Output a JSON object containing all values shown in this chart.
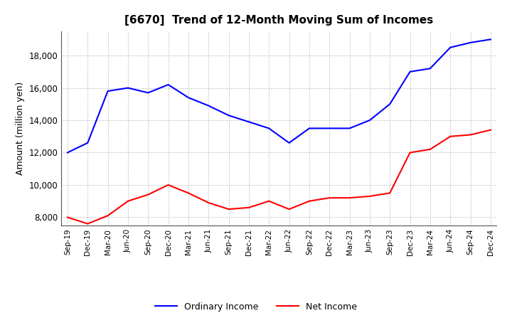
{
  "title": "[6670]  Trend of 12-Month Moving Sum of Incomes",
  "ylabel": "Amount (million yen)",
  "x_labels": [
    "Sep-19",
    "Dec-19",
    "Mar-20",
    "Jun-20",
    "Sep-20",
    "Dec-20",
    "Mar-21",
    "Jun-21",
    "Sep-21",
    "Dec-21",
    "Mar-22",
    "Jun-22",
    "Sep-22",
    "Dec-22",
    "Mar-23",
    "Jun-23",
    "Sep-23",
    "Dec-23",
    "Mar-24",
    "Jun-24",
    "Sep-24",
    "Dec-24"
  ],
  "ordinary_income": [
    12000,
    12600,
    15800,
    16000,
    15700,
    16200,
    15400,
    14900,
    14300,
    13900,
    13500,
    12600,
    13500,
    13500,
    13500,
    14000,
    15000,
    17000,
    17200,
    18500,
    18800,
    19000
  ],
  "net_income": [
    8000,
    7600,
    8100,
    9000,
    9400,
    10000,
    9500,
    8900,
    8500,
    8600,
    9000,
    8500,
    9000,
    9200,
    9200,
    9300,
    9500,
    12000,
    12200,
    13000,
    13100,
    13400
  ],
  "ordinary_color": "#0000ff",
  "net_color": "#ff0000",
  "background_color": "#ffffff",
  "grid_color": "#b0b0b0",
  "ylim": [
    7500,
    19500
  ],
  "yticks": [
    8000,
    10000,
    12000,
    14000,
    16000,
    18000
  ],
  "title_fontsize": 11,
  "axis_fontsize": 9,
  "legend_labels": [
    "Ordinary Income",
    "Net Income"
  ]
}
